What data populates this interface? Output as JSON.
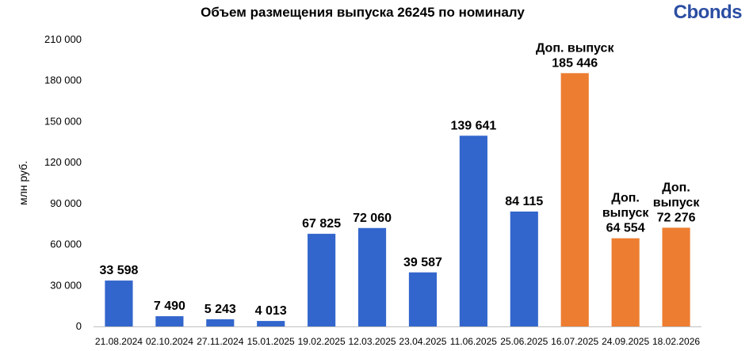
{
  "brand": {
    "name": "Cbonds"
  },
  "colors": {
    "regular": "#3366cc",
    "additional": "#ed7d31"
  },
  "chart_data": {
    "type": "bar",
    "title": "Объем размещения выпуска 26245 по номиналу",
    "xlabel": "",
    "ylabel": "млн руб.",
    "ylim": [
      0,
      210000
    ],
    "yticks": [
      0,
      30000,
      60000,
      90000,
      120000,
      150000,
      180000,
      210000
    ],
    "ytick_labels": [
      "0",
      "30 000",
      "60 000",
      "90 000",
      "120 000",
      "150 000",
      "180 000",
      "210 000"
    ],
    "grid": false,
    "categories": [
      "21.08.2024",
      "02.10.2024",
      "27.11.2024",
      "15.01.2025",
      "19.02.2025",
      "12.03.2025",
      "23.04.2025",
      "11.06.2025",
      "25.06.2025",
      "16.07.2025",
      "24.09.2025",
      "18.02.2026"
    ],
    "values": [
      33598,
      7490,
      5243,
      4013,
      67825,
      72060,
      39587,
      139641,
      84115,
      185446,
      64554,
      72276
    ],
    "value_labels": [
      "33 598",
      "7 490",
      "5 243",
      "4 013",
      "67 825",
      "72 060",
      "39 587",
      "139 641",
      "84 115",
      "185 446",
      "64 554",
      "72 276"
    ],
    "bar_kinds": [
      "regular",
      "regular",
      "regular",
      "regular",
      "regular",
      "regular",
      "regular",
      "regular",
      "regular",
      "additional",
      "additional",
      "additional"
    ],
    "annotations": [
      null,
      null,
      null,
      null,
      null,
      null,
      null,
      null,
      null,
      [
        "Доп. выпуск"
      ],
      [
        "Доп.",
        "выпуск"
      ],
      [
        "Доп.",
        "выпуск"
      ]
    ]
  }
}
